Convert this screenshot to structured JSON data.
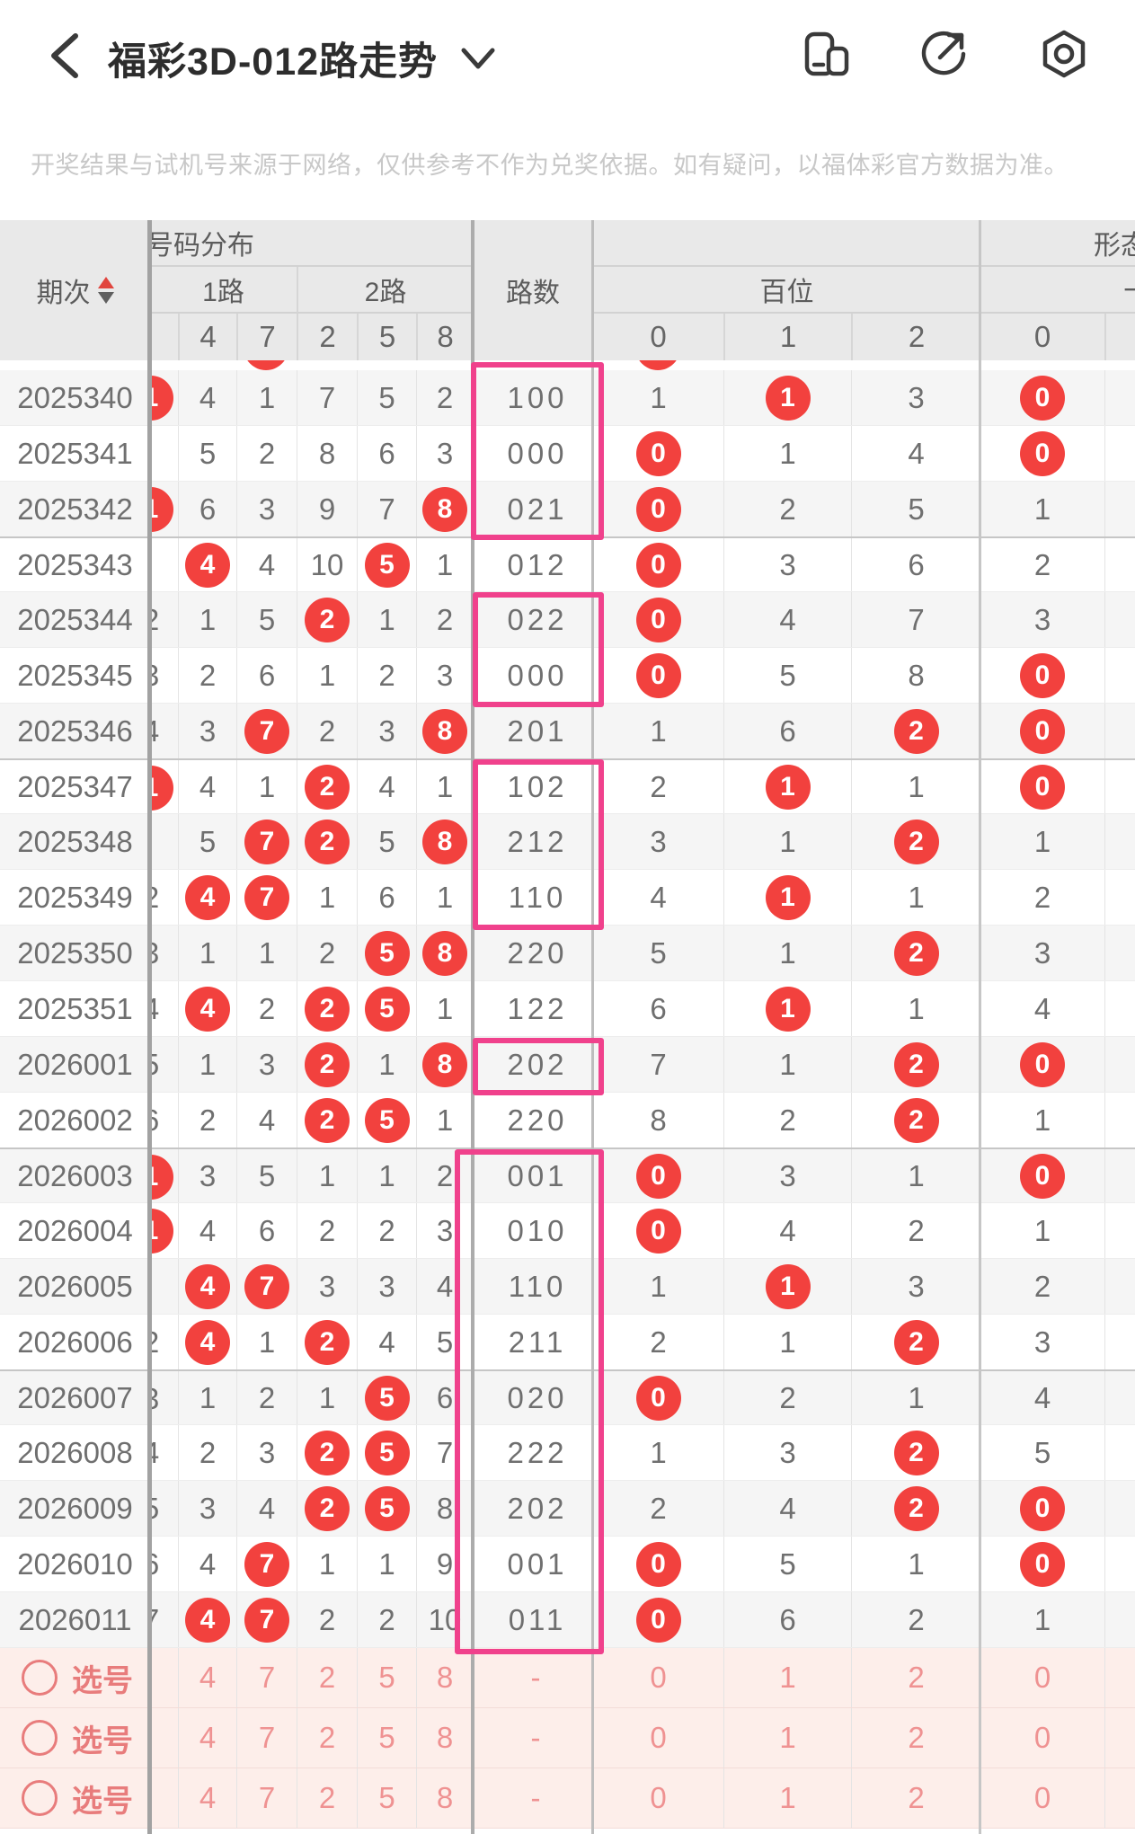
{
  "app_header": {
    "title": "福彩3D-012路走势",
    "back_icon": "chevron-left",
    "dropdown_icon": "chevron-down",
    "right_icons": [
      "rotate-screen",
      "share",
      "settings"
    ]
  },
  "disclaimer": "开奖结果与试机号来源于网络，仅供参考不作为兑奖依据。如有疑问，以福体彩官方数据为准。",
  "table": {
    "col_groups": {
      "qici": "期次",
      "haoma_fenbu": "号码分布",
      "lu1": "1路",
      "lu2": "2路",
      "lushu": "路数",
      "xingtai": "形态",
      "baiwei": "百位",
      "shiwei": "十位"
    },
    "digit_headers": {
      "fenbu": [
        "4",
        "7",
        "2",
        "5",
        "8"
      ],
      "baiwei": [
        "0",
        "1",
        "2"
      ],
      "shiwei": [
        "0"
      ]
    },
    "rows": [
      {
        "p": "2025340",
        "h": "b:1",
        "c": [
          "n:4",
          "n:1",
          "n:7",
          "n:5",
          "n:2"
        ],
        "l": "100",
        "b": [
          "n:1",
          "b:1",
          "n:3"
        ],
        "s": "b:0"
      },
      {
        "p": "2025341",
        "h": "",
        "c": [
          "n:5",
          "n:2",
          "n:8",
          "n:6",
          "n:3"
        ],
        "l": "000",
        "b": [
          "b:0",
          "n:1",
          "n:4"
        ],
        "s": "b:0"
      },
      {
        "p": "2025342",
        "h": "b:1",
        "c": [
          "n:6",
          "n:3",
          "n:9",
          "n:7",
          "b:8"
        ],
        "l": "021",
        "b": [
          "b:0",
          "n:2",
          "n:5"
        ],
        "s": "n:1"
      },
      {
        "p": "2025343",
        "h": "",
        "c": [
          "b:4",
          "n:4",
          "n:10",
          "b:5",
          "n:1"
        ],
        "l": "012",
        "b": [
          "b:0",
          "n:3",
          "n:6"
        ],
        "s": "n:2",
        "sep": true
      },
      {
        "p": "2025344",
        "h": "n:2",
        "c": [
          "n:1",
          "n:5",
          "b:2",
          "n:1",
          "n:2"
        ],
        "l": "022",
        "b": [
          "b:0",
          "n:4",
          "n:7"
        ],
        "s": "n:3"
      },
      {
        "p": "2025345",
        "h": "n:3",
        "c": [
          "n:2",
          "n:6",
          "n:1",
          "n:2",
          "n:3"
        ],
        "l": "000",
        "b": [
          "b:0",
          "n:5",
          "n:8"
        ],
        "s": "b:0"
      },
      {
        "p": "2025346",
        "h": "n:4",
        "c": [
          "n:3",
          "b:7",
          "n:2",
          "n:3",
          "b:8"
        ],
        "l": "201",
        "b": [
          "n:1",
          "n:6",
          "b:2"
        ],
        "s": "b:0"
      },
      {
        "p": "2025347",
        "h": "b:1",
        "c": [
          "n:4",
          "n:1",
          "b:2",
          "n:4",
          "n:1"
        ],
        "l": "102",
        "b": [
          "n:2",
          "b:1",
          "n:1"
        ],
        "s": "b:0",
        "sep": true
      },
      {
        "p": "2025348",
        "h": "",
        "c": [
          "n:5",
          "b:7",
          "b:2",
          "n:5",
          "b:8"
        ],
        "l": "212",
        "b": [
          "n:3",
          "n:1",
          "b:2"
        ],
        "s": "n:1"
      },
      {
        "p": "2025349",
        "h": "n:2",
        "c": [
          "b:4",
          "b:7",
          "n:1",
          "n:6",
          "n:1"
        ],
        "l": "110",
        "b": [
          "n:4",
          "b:1",
          "n:1"
        ],
        "s": "n:2"
      },
      {
        "p": "2025350",
        "h": "n:3",
        "c": [
          "n:1",
          "n:1",
          "n:2",
          "b:5",
          "b:8"
        ],
        "l": "220",
        "b": [
          "n:5",
          "n:1",
          "b:2"
        ],
        "s": "n:3"
      },
      {
        "p": "2025351",
        "h": "n:4",
        "c": [
          "b:4",
          "n:2",
          "b:2",
          "b:5",
          "n:1"
        ],
        "l": "122",
        "b": [
          "n:6",
          "b:1",
          "n:1"
        ],
        "s": "n:4"
      },
      {
        "p": "2026001",
        "h": "n:5",
        "c": [
          "n:1",
          "n:3",
          "b:2",
          "n:1",
          "b:8"
        ],
        "l": "202",
        "b": [
          "n:7",
          "n:1",
          "b:2"
        ],
        "s": "b:0"
      },
      {
        "p": "2026002",
        "h": "n:6",
        "c": [
          "n:2",
          "n:4",
          "b:2",
          "b:5",
          "n:1"
        ],
        "l": "220",
        "b": [
          "n:8",
          "n:2",
          "b:2"
        ],
        "s": "n:1"
      },
      {
        "p": "2026003",
        "h": "b:1",
        "c": [
          "n:3",
          "n:5",
          "n:1",
          "n:1",
          "n:2"
        ],
        "l": "001",
        "b": [
          "b:0",
          "n:3",
          "n:1"
        ],
        "s": "b:0",
        "sep": true
      },
      {
        "p": "2026004",
        "h": "b:1",
        "c": [
          "n:4",
          "n:6",
          "n:2",
          "n:2",
          "n:3"
        ],
        "l": "010",
        "b": [
          "b:0",
          "n:4",
          "n:2"
        ],
        "s": "n:1"
      },
      {
        "p": "2026005",
        "h": "",
        "c": [
          "b:4",
          "b:7",
          "n:3",
          "n:3",
          "n:4"
        ],
        "l": "110",
        "b": [
          "n:1",
          "b:1",
          "n:3"
        ],
        "s": "n:2"
      },
      {
        "p": "2026006",
        "h": "n:2",
        "c": [
          "b:4",
          "n:1",
          "b:2",
          "n:4",
          "n:5"
        ],
        "l": "211",
        "b": [
          "n:2",
          "n:1",
          "b:2"
        ],
        "s": "n:3"
      },
      {
        "p": "2026007",
        "h": "n:3",
        "c": [
          "n:1",
          "n:2",
          "n:1",
          "b:5",
          "n:6"
        ],
        "l": "020",
        "b": [
          "b:0",
          "n:2",
          "n:1"
        ],
        "s": "n:4",
        "sep": true
      },
      {
        "p": "2026008",
        "h": "n:4",
        "c": [
          "n:2",
          "n:3",
          "b:2",
          "b:5",
          "n:7"
        ],
        "l": "222",
        "b": [
          "n:1",
          "n:3",
          "b:2"
        ],
        "s": "n:5"
      },
      {
        "p": "2026009",
        "h": "n:5",
        "c": [
          "n:3",
          "n:4",
          "b:2",
          "b:5",
          "n:8"
        ],
        "l": "202",
        "b": [
          "n:2",
          "n:4",
          "b:2"
        ],
        "s": "b:0"
      },
      {
        "p": "2026010",
        "h": "n:6",
        "c": [
          "n:4",
          "b:7",
          "n:1",
          "n:1",
          "n:9"
        ],
        "l": "001",
        "b": [
          "b:0",
          "n:5",
          "n:1"
        ],
        "s": "b:0"
      },
      {
        "p": "2026011",
        "h": "n:7",
        "c": [
          "b:4",
          "b:7",
          "n:2",
          "n:2",
          "n:10"
        ],
        "l": "011",
        "b": [
          "b:0",
          "n:6",
          "n:2"
        ],
        "s": "n:1"
      }
    ],
    "partial_row_hit_columns": [
      "7",
      "bai-0"
    ],
    "pick_rows": {
      "count": 3,
      "label": "选号",
      "values": [
        "4",
        "7",
        "2",
        "5",
        "8"
      ],
      "lushu": "-",
      "bai": [
        "0",
        "1",
        "2"
      ],
      "shi": "0"
    }
  },
  "colors": {
    "hit_ball": "#f2413e",
    "highlight_box": "#f0418c",
    "pick_row_bg": "#fdeeea",
    "pick_text": "#ef9292",
    "header_bg": "#e9e9e9"
  }
}
